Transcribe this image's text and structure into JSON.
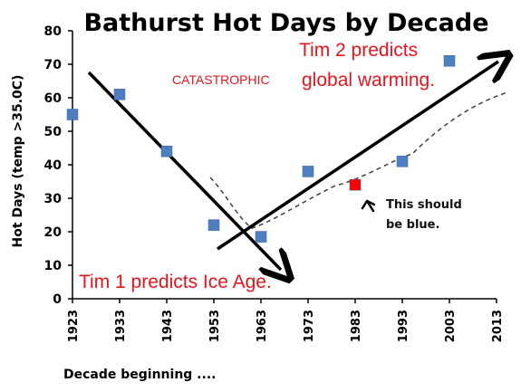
{
  "chart_data": {
    "type": "scatter",
    "title": "Bathurst Hot Days by Decade",
    "xlabel": "Decade beginning ....",
    "ylabel": "Hot Days (temp >35.0C)",
    "xlim": [
      1923,
      2013
    ],
    "ylim": [
      0,
      80
    ],
    "x_ticks": [
      "1923",
      "1933",
      "1943",
      "1953",
      "1963",
      "1973",
      "1983",
      "1993",
      "2003",
      "2013"
    ],
    "y_ticks": [
      "0",
      "10",
      "20",
      "30",
      "40",
      "50",
      "60",
      "70",
      "80"
    ],
    "grid": false,
    "series": [
      {
        "color": "#4f7fc0",
        "points": [
          {
            "x": 1923,
            "y": 55
          },
          {
            "x": 1933,
            "y": 61
          },
          {
            "x": 1943,
            "y": 44
          },
          {
            "x": 1953,
            "y": 22
          },
          {
            "x": 1963,
            "y": 18.5
          },
          {
            "x": 1973,
            "y": 38
          },
          {
            "x": 1993,
            "y": 41
          },
          {
            "x": 2003,
            "y": 71
          }
        ]
      },
      {
        "color": "#ff0000",
        "points": [
          {
            "x": 1983,
            "y": 34
          }
        ]
      }
    ],
    "annotations": {
      "tim2_line1": "Tim 2 predicts",
      "tim2_prefix": "CATASTROPHIC",
      "tim2_line2": "global warming.",
      "tim1": "Tim 1 predicts Ice Age.",
      "note_line1": "This should",
      "note_line2": "be blue."
    }
  }
}
